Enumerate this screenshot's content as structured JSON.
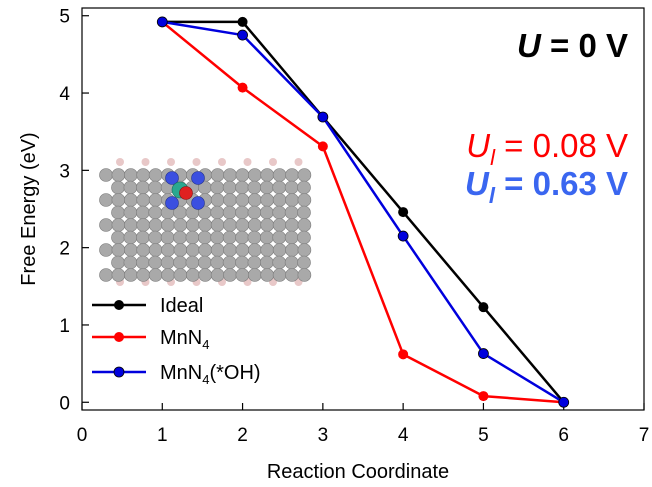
{
  "chart_data": {
    "type": "line",
    "xlabel": "Reaction Coordinate",
    "ylabel": "Free Energy (eV)",
    "xlim": [
      0,
      7
    ],
    "ylim": [
      -0.1,
      5.1
    ],
    "xticks": [
      0,
      1,
      2,
      3,
      4,
      5,
      6,
      7
    ],
    "yticks": [
      0,
      1,
      2,
      3,
      4,
      5
    ],
    "grid": false,
    "legend_position": "bottom-left",
    "series": [
      {
        "name": "Ideal",
        "color": "#000000",
        "x": [
          1,
          2,
          3,
          4,
          5,
          6
        ],
        "y": [
          4.92,
          4.92,
          3.69,
          2.46,
          1.23,
          0.0
        ]
      },
      {
        "name": "MnN",
        "sub": "4",
        "color": "#ff0000",
        "x": [
          1,
          2,
          3,
          4,
          5,
          6
        ],
        "y": [
          4.92,
          4.07,
          3.31,
          0.62,
          0.08,
          0.0
        ]
      },
      {
        "name": "MnN",
        "sub": "4",
        "suffix": "(*OH)",
        "color": "#0000dd",
        "x": [
          1,
          2,
          3,
          4,
          5,
          6
        ],
        "y": [
          4.92,
          4.75,
          3.69,
          2.15,
          0.63,
          0.0
        ]
      }
    ],
    "annotations": {
      "potential": {
        "symbol": "U",
        "text": " =  0 V",
        "color": "#000000"
      },
      "ul_red": {
        "symbol": "U",
        "sub": "l",
        "text": " = 0.08 V",
        "color": "#ff0000"
      },
      "ul_blue": {
        "symbol": "U",
        "sub": "l",
        "text": " = 0.63 V",
        "color": "#3a66f0"
      }
    }
  },
  "inset": {
    "atom_colors": {
      "carbon": "#a9a9a9",
      "hydrogen": "#e8c8c8",
      "nitrogen": "#3b4fe0",
      "oxygen": "#e02020",
      "metal": "#2aa890"
    }
  }
}
